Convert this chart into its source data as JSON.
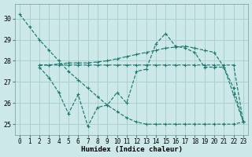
{
  "bg_color": "#cce8e8",
  "grid_color": "#aad0d0",
  "line_color": "#1a7a6e",
  "xlabel": "Humidex (Indice chaleur)",
  "xlim": [
    -0.5,
    23.5
  ],
  "ylim": [
    24.5,
    30.7
  ],
  "yticks": [
    25,
    26,
    27,
    28,
    29,
    30
  ],
  "xticks": [
    0,
    1,
    2,
    3,
    4,
    5,
    6,
    7,
    8,
    9,
    10,
    11,
    12,
    13,
    14,
    15,
    16,
    17,
    18,
    19,
    20,
    21,
    22,
    23
  ],
  "line1_x": [
    0,
    1,
    2,
    3,
    4,
    5,
    6,
    7,
    8,
    9,
    10,
    11,
    12,
    13,
    14,
    15,
    16,
    17,
    18,
    19,
    20,
    21,
    22,
    23
  ],
  "line1_y": [
    30.2,
    29.6,
    29.0,
    28.5,
    28.0,
    27.5,
    27.1,
    26.7,
    26.3,
    25.9,
    25.6,
    25.3,
    25.1,
    25.0,
    25.0,
    25.0,
    25.0,
    25.0,
    25.0,
    25.0,
    25.0,
    25.0,
    25.0,
    25.1
  ],
  "line2_x": [
    2,
    3,
    4,
    5,
    6,
    7,
    8,
    9,
    10,
    11,
    12,
    13,
    14,
    15,
    16,
    17,
    18,
    19,
    20,
    21,
    22,
    23
  ],
  "line2_y": [
    27.7,
    27.2,
    26.5,
    25.5,
    26.4,
    24.9,
    25.8,
    25.9,
    26.5,
    26.0,
    27.5,
    27.6,
    28.8,
    29.3,
    28.7,
    28.6,
    28.4,
    27.7,
    27.7,
    27.7,
    26.4,
    25.1
  ],
  "line3_x": [
    2,
    3,
    4,
    5,
    6,
    7,
    8,
    9,
    10,
    11,
    12,
    13,
    14,
    15,
    16,
    17,
    18,
    19,
    20,
    21,
    22,
    23
  ],
  "line3_y": [
    27.8,
    27.8,
    27.8,
    27.8,
    27.8,
    27.8,
    27.8,
    27.8,
    27.8,
    27.8,
    27.8,
    27.8,
    27.8,
    27.8,
    27.8,
    27.8,
    27.8,
    27.8,
    27.8,
    27.8,
    27.8,
    25.1
  ],
  "line4_x": [
    2,
    3,
    4,
    5,
    6,
    7,
    8,
    9,
    10,
    11,
    12,
    13,
    14,
    15,
    16,
    17,
    18,
    19,
    20,
    21,
    22,
    23
  ],
  "line4_y": [
    27.8,
    27.8,
    27.85,
    27.9,
    27.9,
    27.9,
    27.95,
    28.0,
    28.1,
    28.2,
    28.3,
    28.4,
    28.5,
    28.6,
    28.65,
    28.7,
    28.6,
    28.5,
    28.4,
    27.7,
    26.7,
    25.1
  ]
}
